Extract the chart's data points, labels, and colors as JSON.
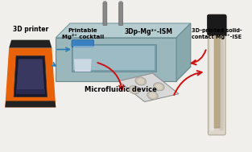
{
  "bg_color": "#f0efeb",
  "title_text": "Microfluidic device",
  "labels": {
    "printer": "3D printer",
    "cocktail": "Printable\nMg²⁺ cocktail",
    "ism": "3Dp-Mg²⁺-ISM",
    "ise": "3D-printed solid-\ncontact Mg²⁺-ISE"
  },
  "arrow_color": "#cc1111",
  "connector_color": "#2a7db5",
  "printer_orange": "#e8620a",
  "printer_dark": "#111111",
  "device_top": "#b0c4c8",
  "device_front": "#8fadb0",
  "device_right": "#7a9ea0",
  "tube_outer": "#c8b89a",
  "tube_glass": "#ddd8d0",
  "tube_cap": "#222222"
}
